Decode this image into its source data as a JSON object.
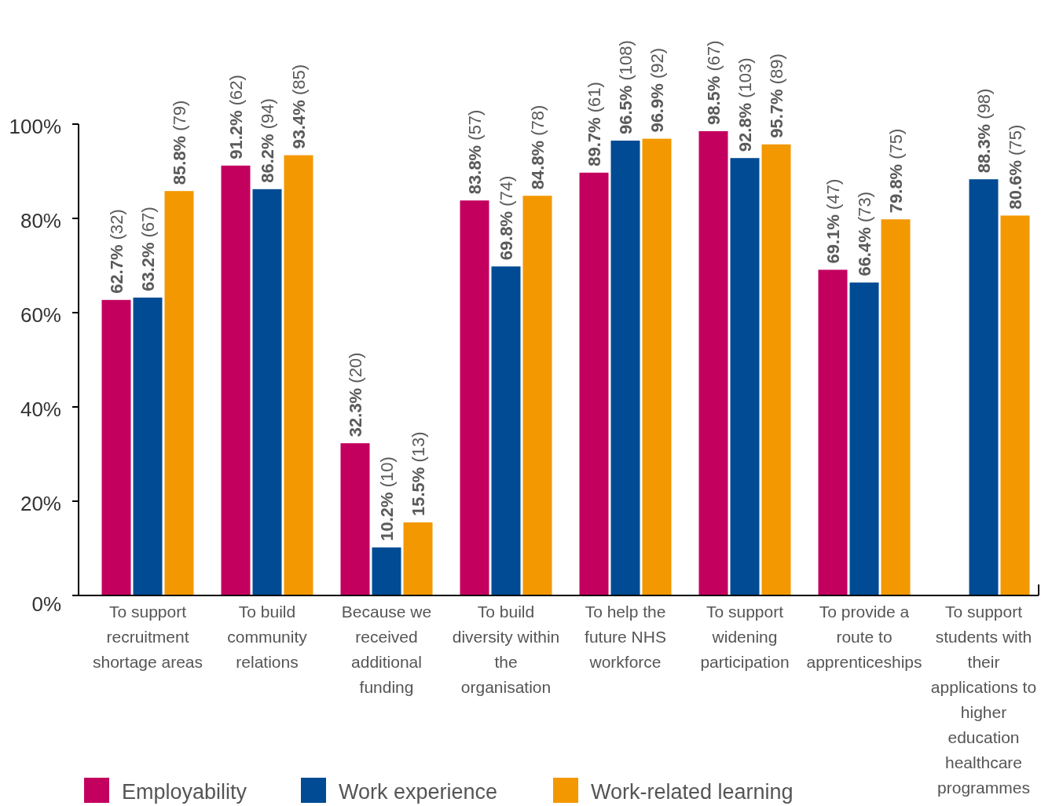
{
  "chart_data": {
    "type": "bar",
    "categories": [
      "To support recruitment shortage areas",
      "To build community relations",
      "Because we received additional funding",
      "To build diversity within the organisation",
      "To help the future NHS workforce",
      "To support widening participation",
      "To provide a route to apprenticeships",
      "To support students with their applications to higher education healthcare programmes"
    ],
    "series": [
      {
        "name": "Employability",
        "color": "#c4005f",
        "values": [
          62.7,
          91.2,
          32.3,
          83.8,
          89.7,
          98.5,
          69.1,
          null
        ],
        "value_labels": [
          "62.7% (32)",
          "91.2% (62)",
          "32.3% (20)",
          "83.8% (57)",
          "89.7% (61)",
          "98.5% (67)",
          "69.1% (47)",
          null
        ]
      },
      {
        "name": "Work experience",
        "color": "#004b93",
        "values": [
          63.2,
          86.2,
          10.2,
          69.8,
          96.5,
          92.8,
          66.4,
          88.3
        ],
        "value_labels": [
          "63.2% (67)",
          "86.2% (94)",
          "10.2% (10)",
          "69.8% (74)",
          "96.5% (108)",
          "92.8% (103)",
          "66.4% (73)",
          "88.3% (98)"
        ]
      },
      {
        "name": "Work-related learning",
        "color": "#f39800",
        "values": [
          85.8,
          93.4,
          15.5,
          84.8,
          96.9,
          95.7,
          79.8,
          80.6
        ],
        "value_labels": [
          "85.8% (79)",
          "93.4% (85)",
          "15.5% (13)",
          "84.8% (78)",
          "96.9% (92)",
          "95.7% (89)",
          "79.8% (75)",
          "80.6% (75)"
        ]
      }
    ],
    "ylim": [
      0,
      100
    ],
    "yticks": [
      {
        "value": 0,
        "label": "0%"
      },
      {
        "value": 20,
        "label": "20%"
      },
      {
        "value": 40,
        "label": "40%"
      },
      {
        "value": 60,
        "label": "60%"
      },
      {
        "value": 80,
        "label": "80%"
      },
      {
        "value": 100,
        "label": "100%"
      }
    ],
    "grid": false,
    "legend": "bottom"
  }
}
